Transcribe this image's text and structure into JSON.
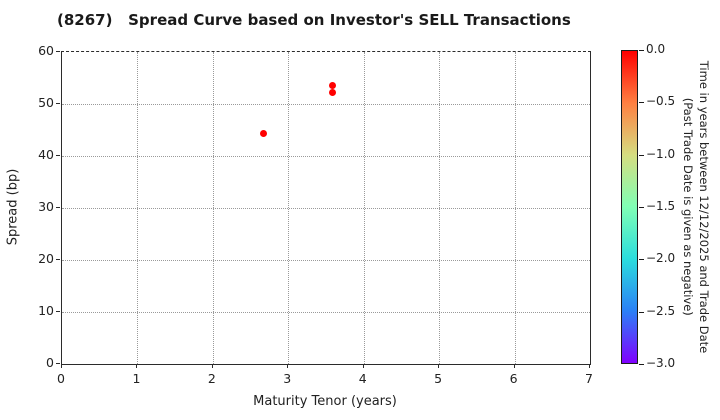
{
  "chart_data": {
    "type": "scatter",
    "title": "(8267)   Spread Curve based on Investor's SELL Transactions",
    "xlabel": "Maturity Tenor (years)",
    "ylabel": "Spread (bp)",
    "xlim": [
      0,
      7
    ],
    "ylim": [
      0,
      60
    ],
    "xticks": [
      0,
      1,
      2,
      3,
      4,
      5,
      6,
      7
    ],
    "yticks": [
      0,
      10,
      20,
      30,
      40,
      50,
      60
    ],
    "grid": "dotted",
    "marker_color": "#ff0000",
    "points": [
      {
        "x": 2.67,
        "y": 44.4,
        "color_value": 0.0
      },
      {
        "x": 3.59,
        "y": 53.6,
        "color_value": 0.0
      },
      {
        "x": 3.59,
        "y": 52.2,
        "color_value": 0.0
      }
    ],
    "colorbar": {
      "value_range": [
        0.0,
        -3.0
      ],
      "ticks": [
        "0.0",
        "−0.5",
        "−1.0",
        "−1.5",
        "−2.0",
        "−2.5",
        "−3.0"
      ],
      "label_line1": "Time in years between 12/12/2025 and Trade Date",
      "label_line2": "(Past Trade Date is given as negative)",
      "gradient_top_to_bottom": [
        "#ff0000",
        "#ff8042",
        "#d5dd80",
        "#80ffb5",
        "#2bdddd",
        "#2b80f6",
        "#8000ff"
      ]
    }
  }
}
